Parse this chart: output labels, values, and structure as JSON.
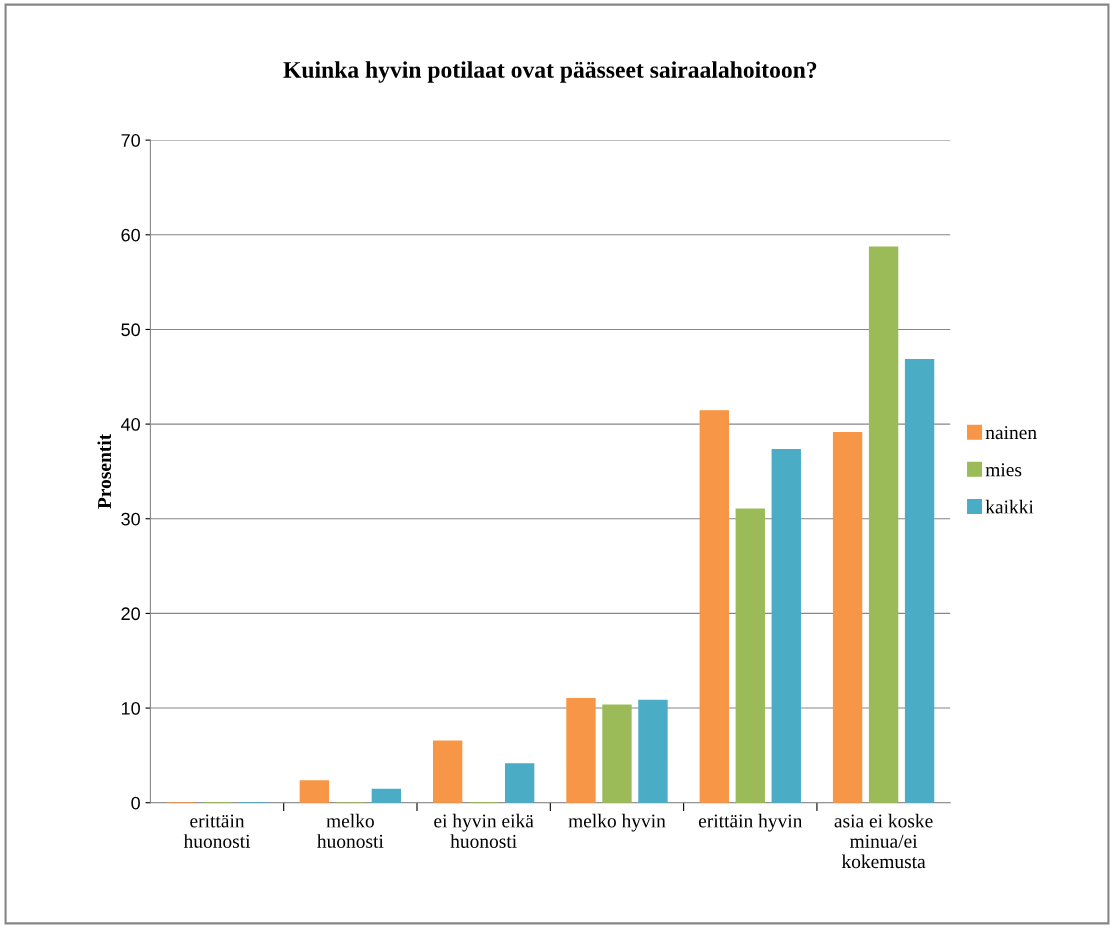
{
  "chart_data": {
    "type": "bar",
    "title": "Kuinka hyvin potilaat ovat päässeet sairaalahoitoon?",
    "ylabel": "Prosentit",
    "categories": [
      "erittäin\nhuonosti",
      "melko\nhuonosti",
      "ei hyvin eikä\nhuonosti",
      "melko hyvin",
      "erittäin hyvin",
      "asia ei koske\nminua/ei\nkokemusta"
    ],
    "series": [
      {
        "name": "nainen",
        "color": "#f79646",
        "values": [
          0,
          2.3,
          6.5,
          11.0,
          41.4,
          39.1
        ]
      },
      {
        "name": "mies",
        "color": "#9bbb59",
        "values": [
          0,
          0,
          0,
          10.3,
          31.0,
          58.7
        ]
      },
      {
        "name": "kaikki",
        "color": "#4bacc6",
        "values": [
          0,
          1.4,
          4.1,
          10.8,
          37.3,
          46.8
        ]
      }
    ],
    "ylim": [
      0,
      70
    ],
    "yticks": [
      0,
      10,
      20,
      30,
      40,
      50,
      60,
      70
    ],
    "grid": "y",
    "legend": "right"
  }
}
